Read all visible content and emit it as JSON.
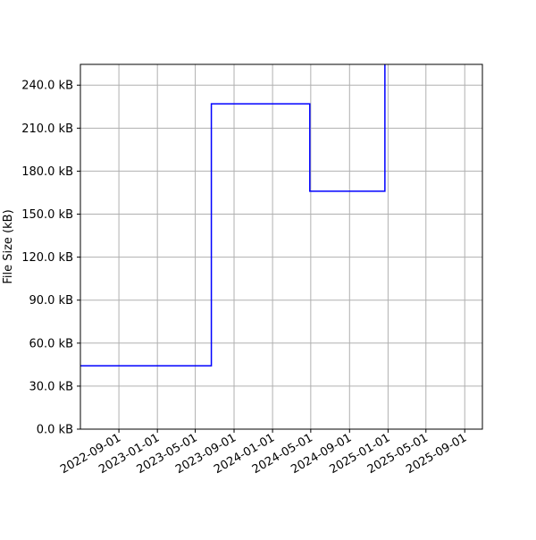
{
  "chart_data": {
    "type": "line",
    "step": "post",
    "title": "",
    "xlabel": "",
    "ylabel": "File Size (kB)",
    "x_ticks": [
      "2022-09-01",
      "2023-01-01",
      "2023-05-01",
      "2023-09-01",
      "2024-01-01",
      "2024-05-01",
      "2024-09-01",
      "2025-01-01",
      "2025-05-01",
      "2025-09-01"
    ],
    "y_ticks": [
      0,
      30,
      60,
      90,
      120,
      150,
      180,
      210,
      240
    ],
    "y_tick_labels": [
      "0.0 kB",
      "30.0 kB",
      "60.0 kB",
      "90.0 kB",
      "120.0 kB",
      "150.0 kB",
      "180.0 kB",
      "210.0 kB",
      "240.0 kB"
    ],
    "xlim": [
      "2022-05-02",
      "2025-10-27"
    ],
    "ylim": [
      0,
      254.5
    ],
    "grid": true,
    "series": [
      {
        "color": "#0000ff",
        "x": [
          "2022-05-02",
          "2023-06-21",
          "2024-04-28",
          "2024-12-22"
        ],
        "y": [
          44.2,
          227.0,
          166.0,
          300.0
        ]
      }
    ]
  }
}
